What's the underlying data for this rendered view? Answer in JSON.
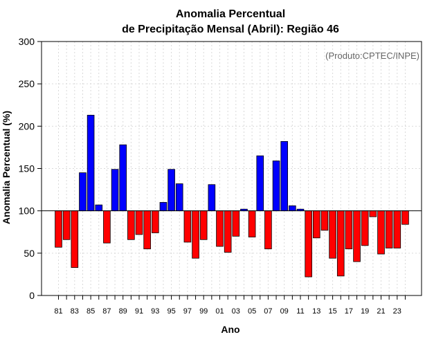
{
  "chart_data": {
    "type": "bar",
    "title_line1": "Anomalia Percentual",
    "title_line2": "de Precipitação Mensal (Abril): Região 46",
    "credit": "(Produto:CPTEC/INPE)",
    "xlabel": "Ano",
    "ylabel": "Anomalia Percentual (%)",
    "ylim": [
      0,
      300
    ],
    "yticks": [
      0,
      50,
      100,
      150,
      200,
      250,
      300
    ],
    "baseline": 100,
    "grid": true,
    "categories": [
      "81",
      "82",
      "83",
      "84",
      "85",
      "86",
      "87",
      "88",
      "89",
      "90",
      "91",
      "92",
      "93",
      "94",
      "95",
      "96",
      "97",
      "98",
      "99",
      "00",
      "01",
      "02",
      "03",
      "04",
      "05",
      "06",
      "07",
      "08",
      "09",
      "10",
      "11",
      "12",
      "13",
      "14",
      "15",
      "16",
      "17",
      "18",
      "19",
      "20",
      "21",
      "22",
      "23",
      "24"
    ],
    "xtick_labels": [
      "81",
      "83",
      "85",
      "87",
      "89",
      "91",
      "93",
      "95",
      "97",
      "99",
      "01",
      "03",
      "05",
      "07",
      "09",
      "11",
      "13",
      "15",
      "17",
      "19",
      "21",
      "23"
    ],
    "values": [
      57,
      66,
      33,
      145,
      213,
      107,
      62,
      149,
      178,
      66,
      72,
      55,
      74,
      110,
      149,
      132,
      63,
      44,
      66,
      131,
      58,
      51,
      70,
      102,
      69,
      165,
      55,
      159,
      182,
      106,
      102,
      22,
      68,
      77,
      44,
      23,
      55,
      40,
      59,
      93,
      49,
      56,
      56,
      84
    ],
    "colors": {
      "above": "#0000ff",
      "below": "#ff0000",
      "stroke": "#000000",
      "grid": "#d9d9d9"
    }
  }
}
